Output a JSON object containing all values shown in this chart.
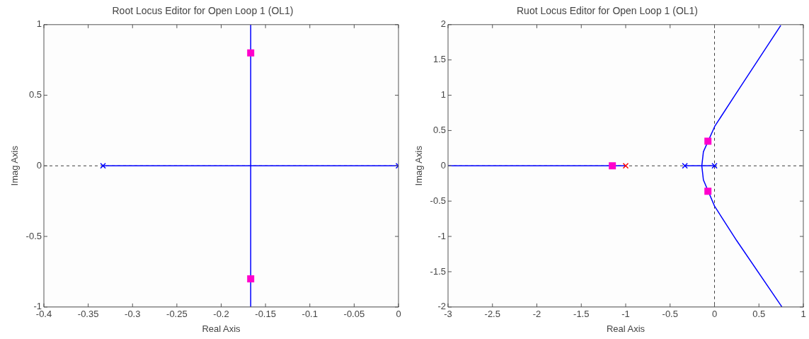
{
  "chart_data": [
    {
      "type": "scatter",
      "title": "Root Locus Editor for Open Loop 1 (OL1)",
      "xlabel": "Real Axis",
      "ylabel": "Imag Axis",
      "xlim": [
        -0.4,
        0
      ],
      "ylim": [
        -1,
        1
      ],
      "xticks": [
        -0.4,
        -0.35,
        -0.3,
        -0.25,
        -0.2,
        -0.15,
        -0.1,
        -0.05,
        0
      ],
      "yticks": [
        -1,
        -0.5,
        0,
        0.5,
        1
      ],
      "grid": false,
      "legend": false,
      "ref_lines": [
        {
          "axis": "y",
          "value": 0,
          "color": "#404040",
          "line_style": "dashed"
        }
      ],
      "series": [
        {
          "type": "line",
          "color": "#0000ff",
          "marker": "none",
          "x": [
            -0.3333,
            0
          ],
          "values": [
            0,
            0
          ]
        },
        {
          "type": "line",
          "color": "#0000ff",
          "marker": "none",
          "x": [
            -0.1667,
            -0.1667
          ],
          "values": [
            -1,
            1
          ]
        },
        {
          "type": "scatter",
          "color": "#0000ff",
          "marker": "cross",
          "x": [
            -0.3333,
            0
          ],
          "values": [
            0,
            0
          ]
        },
        {
          "type": "scatter",
          "color": "#ff00cc",
          "marker": "square",
          "x": [
            -0.1667,
            -0.1667
          ],
          "values": [
            0.8,
            -0.8
          ]
        }
      ]
    },
    {
      "type": "scatter",
      "title": "Ruot Locus Editor for Open Loop 1 (OL1)",
      "xlabel": "Real Axis",
      "ylabel": "Imag Axis",
      "xlim": [
        -3,
        1
      ],
      "ylim": [
        -2,
        2
      ],
      "xticks": [
        -3,
        -2.5,
        -2,
        -1.5,
        -1,
        -0.5,
        0,
        0.5,
        1
      ],
      "yticks": [
        -2,
        -1.5,
        -1,
        -0.5,
        0,
        0.5,
        1,
        1.5,
        2
      ],
      "grid": false,
      "legend": false,
      "ref_lines": [
        {
          "axis": "y",
          "value": 0,
          "color": "#404040",
          "line_style": "dashed"
        },
        {
          "axis": "x",
          "value": 0,
          "color": "#404040",
          "line_style": "dashed"
        }
      ],
      "series": [
        {
          "type": "line",
          "color": "#0000ff",
          "marker": "none",
          "x": [
            -3,
            -1
          ],
          "values": [
            0,
            0
          ]
        },
        {
          "type": "line",
          "color": "#0000ff",
          "marker": "none",
          "x": [
            -0.3333,
            0
          ],
          "values": [
            0,
            0
          ]
        },
        {
          "type": "line",
          "color": "#0000ff",
          "marker": "none",
          "x": [
            0.746,
            0.235,
            0.003,
            -0.125,
            -0.143,
            -0.125,
            0,
            0.25,
            0.76
          ],
          "values": [
            1.99,
            1.01,
            0.56,
            0.2,
            0,
            -0.2,
            -0.57,
            -1.06,
            -2
          ]
        },
        {
          "type": "scatter",
          "color": "#0000ff",
          "marker": "cross",
          "x": [
            -0.3333,
            0
          ],
          "values": [
            0,
            0
          ]
        },
        {
          "type": "scatter",
          "color": "#ff0000",
          "marker": "cross",
          "x": [
            -1
          ],
          "values": [
            0
          ]
        },
        {
          "type": "scatter",
          "color": "#ff00cc",
          "marker": "square",
          "x": [
            -1.15,
            -0.074,
            -0.074
          ],
          "values": [
            0,
            0.35,
            -0.36
          ]
        }
      ]
    }
  ]
}
